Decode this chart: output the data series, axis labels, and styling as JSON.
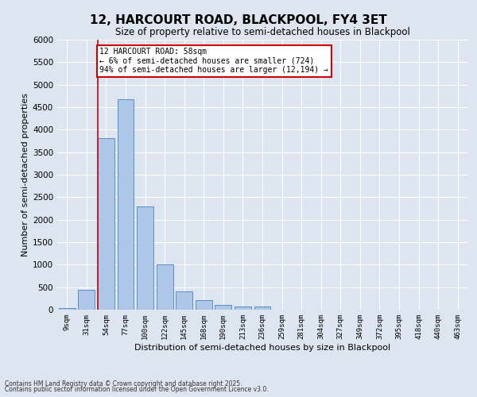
{
  "title1": "12, HARCOURT ROAD, BLACKPOOL, FY4 3ET",
  "title2": "Size of property relative to semi-detached houses in Blackpool",
  "xlabel": "Distribution of semi-detached houses by size in Blackpool",
  "ylabel": "Number of semi-detached properties",
  "categories": [
    "9sqm",
    "31sqm",
    "54sqm",
    "77sqm",
    "100sqm",
    "122sqm",
    "145sqm",
    "168sqm",
    "190sqm",
    "213sqm",
    "236sqm",
    "259sqm",
    "281sqm",
    "304sqm",
    "327sqm",
    "349sqm",
    "372sqm",
    "395sqm",
    "418sqm",
    "440sqm",
    "463sqm"
  ],
  "values": [
    40,
    440,
    3820,
    4680,
    2300,
    1000,
    410,
    210,
    100,
    70,
    65,
    0,
    0,
    0,
    0,
    0,
    0,
    0,
    0,
    0,
    0
  ],
  "bar_color": "#aec6e8",
  "bar_edge_color": "#5b8ec4",
  "vline_color": "#cc0000",
  "annotation_text": "12 HARCOURT ROAD: 58sqm\n← 6% of semi-detached houses are smaller (724)\n94% of semi-detached houses are larger (12,194) →",
  "annotation_box_color": "#ffffff",
  "annotation_box_edge": "#cc0000",
  "background_color": "#dde5f0",
  "plot_bg_color": "#dde5f0",
  "footer1": "Contains HM Land Registry data © Crown copyright and database right 2025.",
  "footer2": "Contains public sector information licensed under the Open Government Licence v3.0.",
  "ylim": [
    0,
    6000
  ],
  "yticks": [
    0,
    500,
    1000,
    1500,
    2000,
    2500,
    3000,
    3500,
    4000,
    4500,
    5000,
    5500,
    6000
  ],
  "vline_bar_index": 2
}
